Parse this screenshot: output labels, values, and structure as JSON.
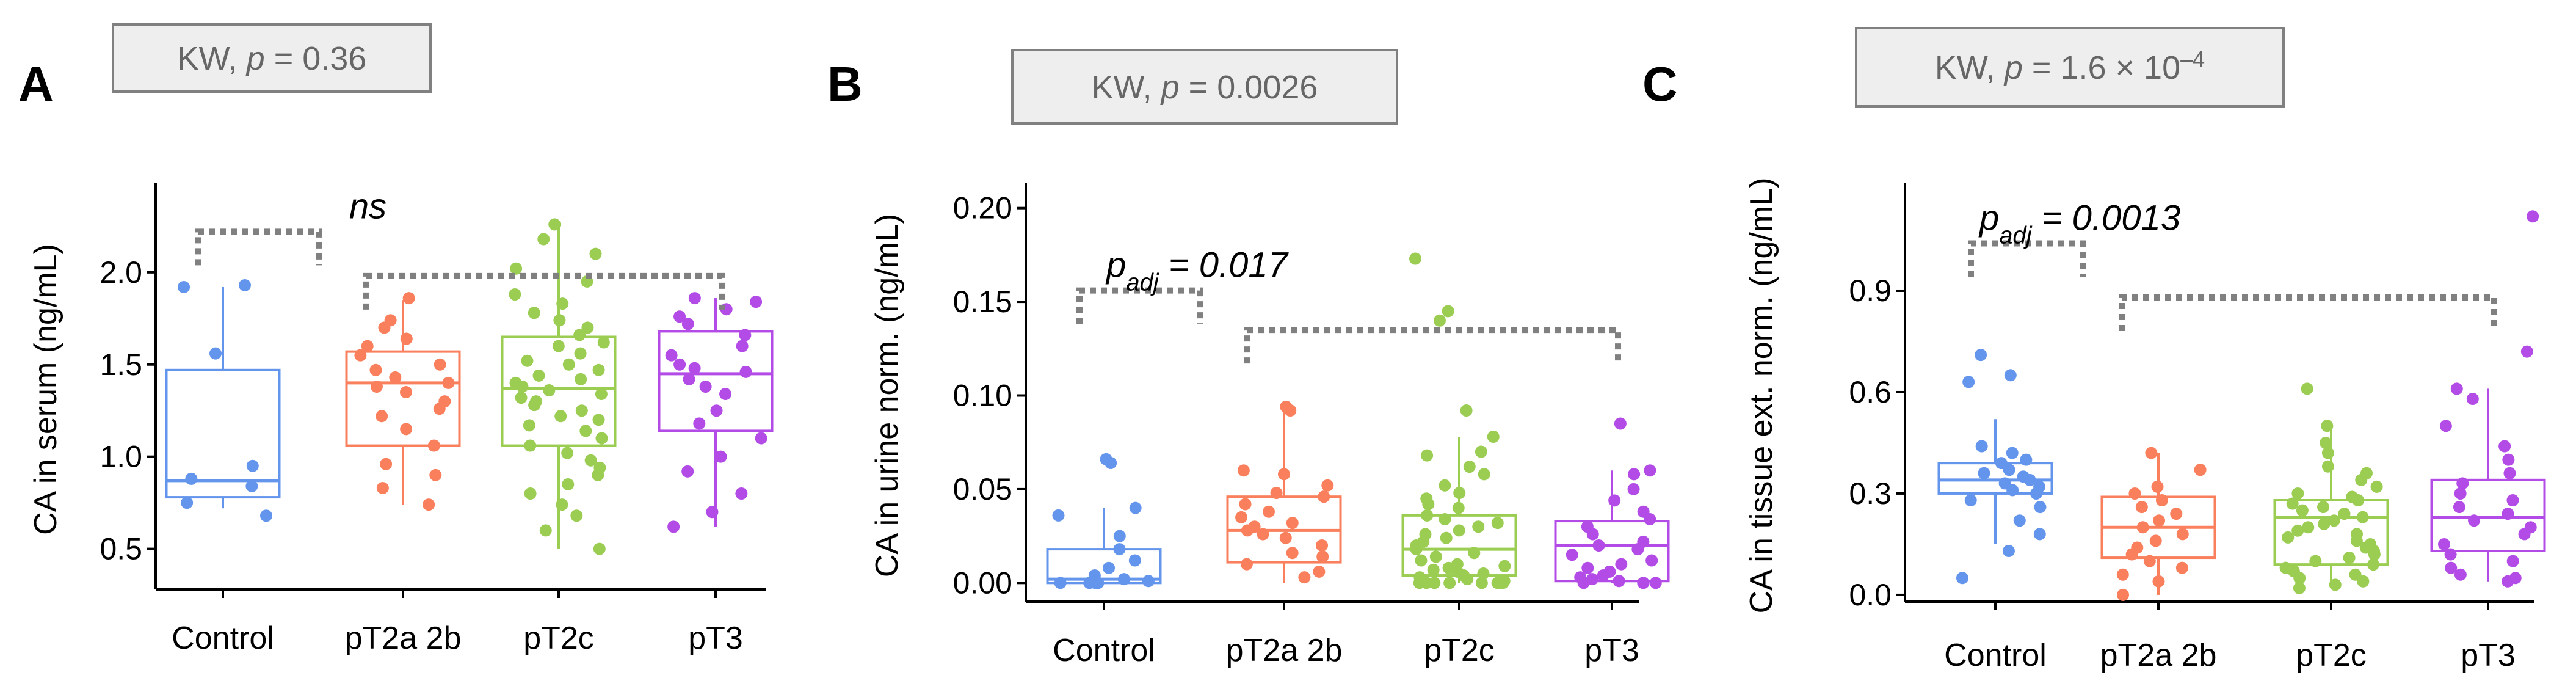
{
  "chart_data": [
    {
      "type": "box",
      "panel_label": "A",
      "kw_label": "KW, p = 0.36",
      "ylabel": "CA in serum (ng/mL)",
      "categories": [
        "Control",
        "pT2a 2b",
        "pT2c",
        "pT3"
      ],
      "colors": [
        "#6495ED",
        "#FA7F5C",
        "#9ACD52",
        "#B34BE6"
      ],
      "ylim": [
        0.28,
        2.45
      ],
      "yticks": [
        "0.5",
        "1.0",
        "1.5",
        "2.0"
      ],
      "boxes": [
        {
          "q1": 0.78,
          "median": 0.87,
          "q3": 1.47,
          "lower": 0.72,
          "upper": 1.92
        },
        {
          "q1": 1.06,
          "median": 1.4,
          "q3": 1.57,
          "lower": 0.74,
          "upper": 1.85
        },
        {
          "q1": 1.06,
          "median": 1.37,
          "q3": 1.65,
          "lower": 0.5,
          "upper": 2.27
        },
        {
          "q1": 1.14,
          "median": 1.45,
          "q3": 1.68,
          "lower": 0.62,
          "upper": 1.86
        }
      ],
      "points": [
        [
          1.93,
          1.92,
          1.56,
          0.95,
          0.88,
          0.84,
          0.75,
          0.68
        ],
        [
          1.86,
          1.74,
          1.7,
          1.64,
          1.6,
          1.55,
          1.5,
          1.47,
          1.43,
          1.4,
          1.38,
          1.35,
          1.3,
          1.26,
          1.22,
          1.15,
          1.06,
          0.96,
          0.9,
          0.83,
          0.74
        ],
        [
          2.26,
          2.18,
          2.1,
          2.02,
          1.95,
          1.88,
          1.83,
          1.78,
          1.74,
          1.7,
          1.66,
          1.62,
          1.6,
          1.56,
          1.52,
          1.5,
          1.47,
          1.44,
          1.42,
          1.4,
          1.38,
          1.36,
          1.34,
          1.32,
          1.3,
          1.28,
          1.25,
          1.22,
          1.2,
          1.17,
          1.14,
          1.1,
          1.06,
          1.02,
          0.98,
          0.94,
          0.9,
          0.85,
          0.8,
          0.74,
          0.68,
          0.6,
          0.5
        ],
        [
          1.86,
          1.84,
          1.8,
          1.76,
          1.72,
          1.66,
          1.6,
          1.55,
          1.5,
          1.48,
          1.46,
          1.42,
          1.38,
          1.34,
          1.25,
          1.18,
          1.1,
          1.0,
          0.92,
          0.8,
          0.7,
          0.62
        ]
      ],
      "annotations": [
        {
          "text": "ns",
          "pair": [
            0,
            2
          ],
          "level": 2.22
        },
        {
          "text": "",
          "pair": [
            1,
            3
          ],
          "level": 1.98
        }
      ]
    },
    {
      "type": "box",
      "panel_label": "B",
      "kw_label": "KW, p = 0.0026",
      "ylabel": "CA in urine norm. (ng/mL)",
      "categories": [
        "Control",
        "pT2a 2b",
        "pT2c",
        "pT3"
      ],
      "colors": [
        "#6495ED",
        "#FA7F5C",
        "#9ACD52",
        "#B34BE6"
      ],
      "ylim": [
        -0.01,
        0.21
      ],
      "yticks": [
        "0.00",
        "0.05",
        "0.10",
        "0.15",
        "0.20"
      ],
      "boxes": [
        {
          "q1": 0.0,
          "median": 0.002,
          "q3": 0.018,
          "lower": 0.0,
          "upper": 0.04
        },
        {
          "q1": 0.011,
          "median": 0.028,
          "q3": 0.046,
          "lower": 0.0,
          "upper": 0.093
        },
        {
          "q1": 0.004,
          "median": 0.018,
          "q3": 0.036,
          "lower": 0.0,
          "upper": 0.078
        },
        {
          "q1": 0.001,
          "median": 0.02,
          "q3": 0.033,
          "lower": 0.0,
          "upper": 0.06
        }
      ],
      "points": [
        [
          0.066,
          0.064,
          0.04,
          0.036,
          0.025,
          0.018,
          0.012,
          0.008,
          0.004,
          0.002,
          0.001,
          0.0,
          0.0,
          0.0,
          0.0,
          0.0
        ],
        [
          0.094,
          0.092,
          0.06,
          0.058,
          0.052,
          0.048,
          0.046,
          0.042,
          0.038,
          0.035,
          0.032,
          0.03,
          0.028,
          0.026,
          0.024,
          0.02,
          0.016,
          0.014,
          0.01,
          0.006,
          0.003
        ],
        [
          0.173,
          0.145,
          0.14,
          0.092,
          0.078,
          0.07,
          0.068,
          0.062,
          0.058,
          0.052,
          0.048,
          0.045,
          0.042,
          0.04,
          0.036,
          0.034,
          0.032,
          0.03,
          0.028,
          0.026,
          0.024,
          0.022,
          0.02,
          0.018,
          0.016,
          0.014,
          0.012,
          0.01,
          0.009,
          0.008,
          0.007,
          0.006,
          0.005,
          0.004,
          0.003,
          0.002,
          0.001,
          0.0,
          0.0,
          0.0,
          0.0,
          0.0,
          0.0,
          0.0,
          0.0
        ],
        [
          0.085,
          0.06,
          0.058,
          0.05,
          0.044,
          0.038,
          0.034,
          0.03,
          0.026,
          0.022,
          0.02,
          0.018,
          0.015,
          0.012,
          0.01,
          0.008,
          0.006,
          0.004,
          0.003,
          0.002,
          0.001,
          0.0,
          0.0,
          0.0,
          0.0
        ]
      ],
      "annotations": [
        {
          "text": "p_adj = 0.017",
          "pair": [
            0,
            2
          ],
          "level": 0.156
        },
        {
          "text": "",
          "pair": [
            1,
            3
          ],
          "level": 0.135
        }
      ]
    },
    {
      "type": "box",
      "panel_label": "C",
      "kw_label": "KW, p = 1.6 × 10–4",
      "ylabel": "CA in tissue ext. norm. (ng/mL)",
      "categories": [
        "Control",
        "pT2a 2b",
        "pT2c",
        "pT3"
      ],
      "colors": [
        "#6495ED",
        "#FA7F5C",
        "#9ACD52",
        "#B34BE6"
      ],
      "ylim": [
        -0.02,
        1.2
      ],
      "yticks": [
        "0.0",
        "0.3",
        "0.6",
        "0.9"
      ],
      "boxes": [
        {
          "q1": 0.3,
          "median": 0.34,
          "q3": 0.39,
          "lower": 0.15,
          "upper": 0.52
        },
        {
          "q1": 0.11,
          "median": 0.2,
          "q3": 0.29,
          "lower": 0.0,
          "upper": 0.42
        },
        {
          "q1": 0.09,
          "median": 0.23,
          "q3": 0.28,
          "lower": 0.02,
          "upper": 0.5
        },
        {
          "q1": 0.13,
          "median": 0.23,
          "q3": 0.34,
          "lower": 0.04,
          "upper": 0.61
        }
      ],
      "points": [
        [
          0.71,
          0.65,
          0.63,
          0.44,
          0.42,
          0.4,
          0.39,
          0.37,
          0.36,
          0.35,
          0.34,
          0.33,
          0.32,
          0.31,
          0.3,
          0.28,
          0.26,
          0.22,
          0.18,
          0.13,
          0.05
        ],
        [
          0.42,
          0.37,
          0.32,
          0.3,
          0.28,
          0.26,
          0.24,
          0.22,
          0.2,
          0.18,
          0.16,
          0.14,
          0.12,
          0.1,
          0.08,
          0.06,
          0.04,
          0.0
        ],
        [
          0.61,
          0.5,
          0.45,
          0.42,
          0.38,
          0.36,
          0.34,
          0.32,
          0.3,
          0.29,
          0.28,
          0.27,
          0.26,
          0.25,
          0.24,
          0.23,
          0.22,
          0.21,
          0.2,
          0.19,
          0.18,
          0.17,
          0.16,
          0.15,
          0.14,
          0.13,
          0.12,
          0.11,
          0.1,
          0.09,
          0.08,
          0.07,
          0.06,
          0.05,
          0.04,
          0.03,
          0.02
        ],
        [
          1.12,
          0.72,
          0.61,
          0.58,
          0.5,
          0.44,
          0.4,
          0.36,
          0.33,
          0.3,
          0.28,
          0.26,
          0.24,
          0.22,
          0.2,
          0.18,
          0.15,
          0.12,
          0.1,
          0.08,
          0.06,
          0.05,
          0.04
        ]
      ],
      "annotations": [
        {
          "text": "p_adj = 0.0013",
          "pair": [
            0,
            2
          ],
          "level": 1.04
        },
        {
          "text": "",
          "pair": [
            1,
            3
          ],
          "level": 0.88
        }
      ]
    }
  ]
}
